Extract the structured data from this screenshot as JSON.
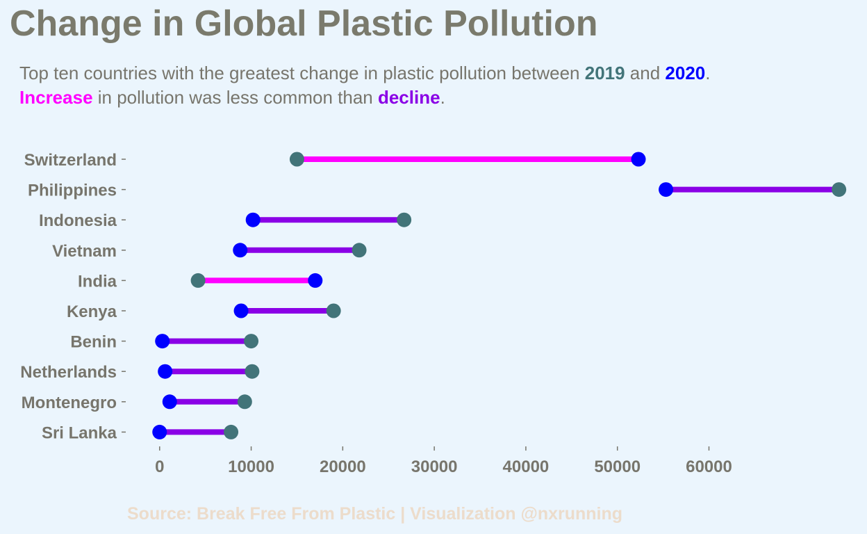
{
  "title": "Change in Global Plastic Pollution",
  "subtitle": {
    "line1_prefix": "Top ten countries with the greatest change in plastic pollution between ",
    "year1": "2019",
    "line1_mid": " and ",
    "year2": "2020",
    "line1_suffix": ".",
    "increase_word": "Increase",
    "line2_mid": " in pollution was less common than ",
    "decline_word": "decline",
    "line2_suffix": "."
  },
  "source": "Source: Break Free From Plastic | Visualization @nxrunning",
  "colors": {
    "background": "#ebf5fd",
    "year_2019": "#427479",
    "year_2020": "#0000ff",
    "increase": "#ff00ff",
    "decline": "#8a00e6",
    "text": "#77756c",
    "source": "#ecdccb"
  },
  "chart_data": {
    "type": "dumbbell",
    "xlim": [
      -1500,
      74000
    ],
    "x_ticks": [
      0,
      10000,
      20000,
      30000,
      40000,
      50000,
      60000
    ],
    "x_tick_labels": [
      "0",
      "10000",
      "20000",
      "30000",
      "40000",
      "50000",
      "60000"
    ],
    "grid": false,
    "categories": [
      "Switzerland",
      "Philippines",
      "Indonesia",
      "Vietnam",
      "India",
      "Kenya",
      "Benin",
      "Netherlands",
      "Montenegro",
      "Sri Lanka"
    ],
    "series": [
      {
        "name": "2019",
        "values": [
          15000,
          74200,
          26700,
          21800,
          4200,
          19000,
          10000,
          10100,
          9300,
          7800
        ]
      },
      {
        "name": "2020",
        "values": [
          52300,
          55300,
          10200,
          8800,
          17000,
          8900,
          300,
          600,
          1100,
          0
        ]
      }
    ],
    "change": [
      "increase",
      "decline",
      "decline",
      "decline",
      "increase",
      "decline",
      "decline",
      "decline",
      "decline",
      "decline"
    ]
  }
}
